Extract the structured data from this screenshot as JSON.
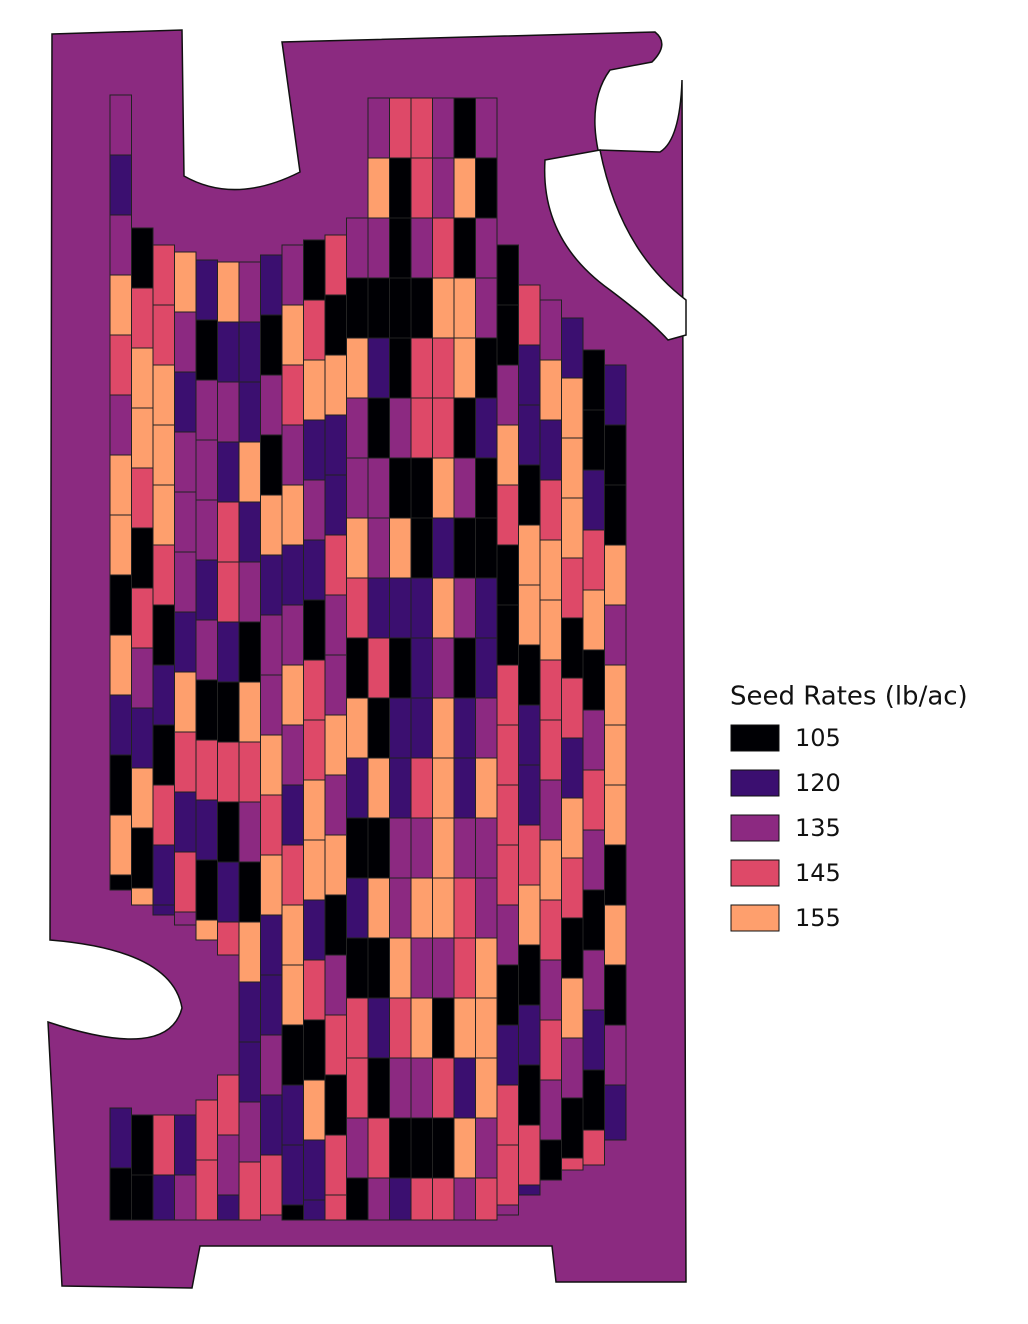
{
  "legend": {
    "title": "Seed Rates (lb/ac)",
    "items": [
      {
        "value": 105,
        "color": "#000004"
      },
      {
        "value": 120,
        "color": "#3b0f70"
      },
      {
        "value": 135,
        "color": "#8c2981"
      },
      {
        "value": 145,
        "color": "#de4968"
      },
      {
        "value": 155,
        "color": "#fe9f6d"
      }
    ]
  }
}
